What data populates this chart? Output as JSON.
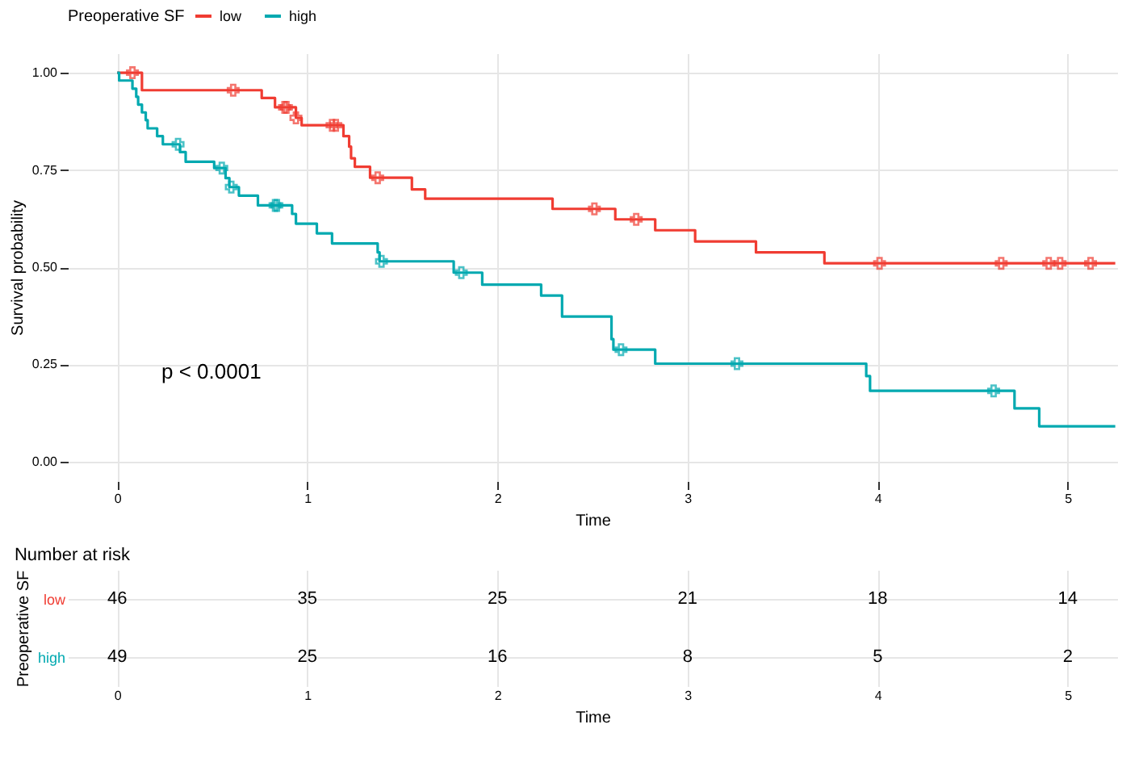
{
  "chart_data": [
    {
      "type": "step",
      "xlabel": "Time",
      "ylabel": "Survival probability",
      "legend_title": "Preoperative SF",
      "legend": "top",
      "grid": true,
      "line_style": "solid",
      "xlim": [
        -0.26,
        5.26
      ],
      "ylim": [
        -0.05,
        1.05
      ],
      "xticks": [
        0,
        1,
        2,
        3,
        4,
        5
      ],
      "yticks": [
        {
          "value": 0,
          "label": "0.00"
        },
        {
          "value": 0.25,
          "label": "0.25"
        },
        {
          "value": 0.5,
          "label": "0.50"
        },
        {
          "value": 0.75,
          "label": "0.75"
        },
        {
          "value": 1,
          "label": "1.00"
        }
      ],
      "annotations": [
        "p < 0.0001"
      ],
      "series": [
        {
          "name": "low",
          "type": "step",
          "color": "#f03c32",
          "x": [
            0,
            0.13,
            0.76,
            0.83,
            0.94,
            0.97,
            1.19,
            1.22,
            1.23,
            1.25,
            1.33,
            1.55,
            1.62,
            2.29,
            2.62,
            2.83,
            3.04,
            3.36,
            3.72,
            5.25
          ],
          "values": [
            1,
            0.955,
            0.935,
            0.911,
            0.884,
            0.865,
            0.837,
            0.81,
            0.78,
            0.758,
            0.73,
            0.7,
            0.676,
            0.65,
            0.623,
            0.595,
            0.566,
            0.538,
            0.51,
            0.51
          ]
        },
        {
          "name": "high",
          "type": "step",
          "color": "#00a9b0",
          "x": [
            0,
            0.01,
            0.08,
            0.1,
            0.11,
            0.13,
            0.15,
            0.16,
            0.21,
            0.24,
            0.33,
            0.36,
            0.51,
            0.57,
            0.59,
            0.64,
            0.74,
            0.92,
            0.94,
            1.05,
            1.13,
            1.37,
            1.38,
            1.77,
            1.92,
            2.23,
            2.34,
            2.6,
            2.61,
            2.83,
            3.94,
            3.96,
            4.72,
            4.85,
            5.25
          ],
          "values": [
            1,
            0.98,
            0.959,
            0.938,
            0.918,
            0.898,
            0.878,
            0.857,
            0.837,
            0.816,
            0.796,
            0.771,
            0.755,
            0.729,
            0.706,
            0.684,
            0.659,
            0.637,
            0.612,
            0.587,
            0.561,
            0.538,
            0.515,
            0.486,
            0.455,
            0.427,
            0.373,
            0.315,
            0.288,
            0.252,
            0.22,
            0.182,
            0.137,
            0.091,
            0.091
          ]
        },
        {
          "type": "scatter",
          "marker": "cross",
          "color": "#f03c32",
          "x": [
            0.08,
            0.61,
            0.88,
            0.89,
            0.94,
            1.13,
            1.15,
            1.37,
            2.51,
            2.73,
            4.01,
            4.65,
            4.9,
            4.96,
            5.12
          ],
          "values": [
            1,
            0.955,
            0.911,
            0.911,
            0.884,
            0.865,
            0.865,
            0.73,
            0.65,
            0.623,
            0.51,
            0.51,
            0.51,
            0.51,
            0.51
          ]
        },
        {
          "type": "scatter",
          "marker": "cross",
          "color": "#00a9b0",
          "x": [
            0.32,
            0.55,
            0.6,
            0.83,
            0.84,
            1.39,
            1.81,
            2.65,
            3.26,
            4.61
          ],
          "values": [
            0.816,
            0.755,
            0.706,
            0.659,
            0.659,
            0.515,
            0.486,
            0.288,
            0.252,
            0.182
          ]
        }
      ]
    },
    {
      "type": "heatmap",
      "title": "Number at risk",
      "xlabel": "Time",
      "ylabel": "Preoperative SF",
      "grid": true,
      "data_labels": true,
      "categories": [
        "0",
        "1",
        "2",
        "3",
        "4",
        "5"
      ],
      "y_categories": [
        "low",
        "high"
      ],
      "cells": [
        [
          46,
          35,
          25,
          21,
          18,
          14
        ],
        [
          49,
          25,
          16,
          8,
          5,
          2
        ]
      ]
    }
  ]
}
